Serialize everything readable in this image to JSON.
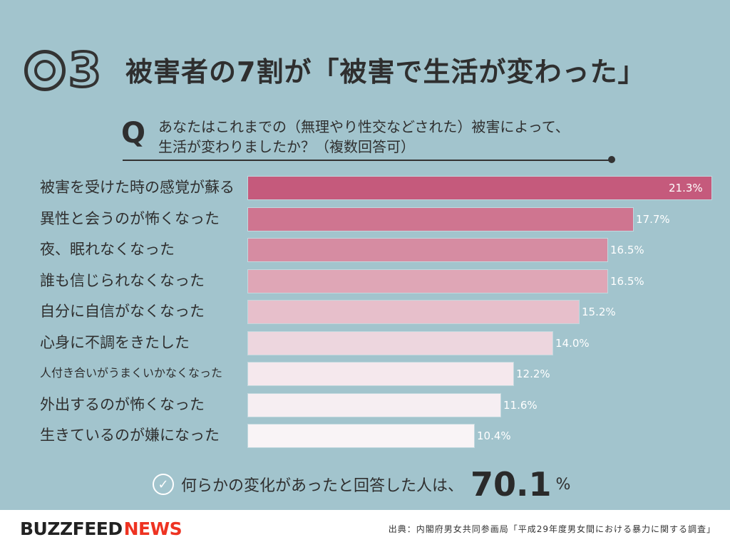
{
  "header": {
    "badge_number": "3",
    "title": "被害者の7割が「被害で生活が変わった」"
  },
  "question": {
    "mark": "Q",
    "line1": "あなたはこれまでの（無理やり性交などされた）被害によって、",
    "line2": "生活が変わりましたか？（複数回答可）"
  },
  "chart_data": {
    "type": "bar",
    "orientation": "horizontal",
    "unit": "%",
    "xlim": [
      0,
      21.3
    ],
    "categories": [
      "被害を受けた時の感覚が蘇る",
      "異性と会うのが怖くなった",
      "夜、眠れなくなった",
      "誰も信じられなくなった",
      "自分に自信がなくなった",
      "心身に不調をきたした",
      "人付き合いがうまくいかなくなった",
      "外出するのが怖くなった",
      "生きているのが嫌になった"
    ],
    "values": [
      21.3,
      17.7,
      16.5,
      16.5,
      15.2,
      14.0,
      12.2,
      11.6,
      10.4
    ],
    "value_labels": [
      "21.3%",
      "17.7%",
      "16.5%",
      "16.5%",
      "15.2%",
      "14.0%",
      "12.2%",
      "11.6%",
      "10.4%"
    ],
    "colors": [
      "#c55a7c",
      "#cf7590",
      "#d68ca2",
      "#dfa6b6",
      "#e7bfcb",
      "#edd6de",
      "#f5e8ed",
      "#f6eef2",
      "#f9f4f6"
    ]
  },
  "summary": {
    "text": "何らかの変化があったと回答した人は、",
    "value": "70.1",
    "unit": "%",
    "check_icon": "check-circle-icon"
  },
  "footer": {
    "logo_buzz": "BUZZFEED",
    "logo_news": "NEWS",
    "source": "出典：内閣府男女共同参画局「平成29年度男女間における暴力に関する調査」"
  }
}
